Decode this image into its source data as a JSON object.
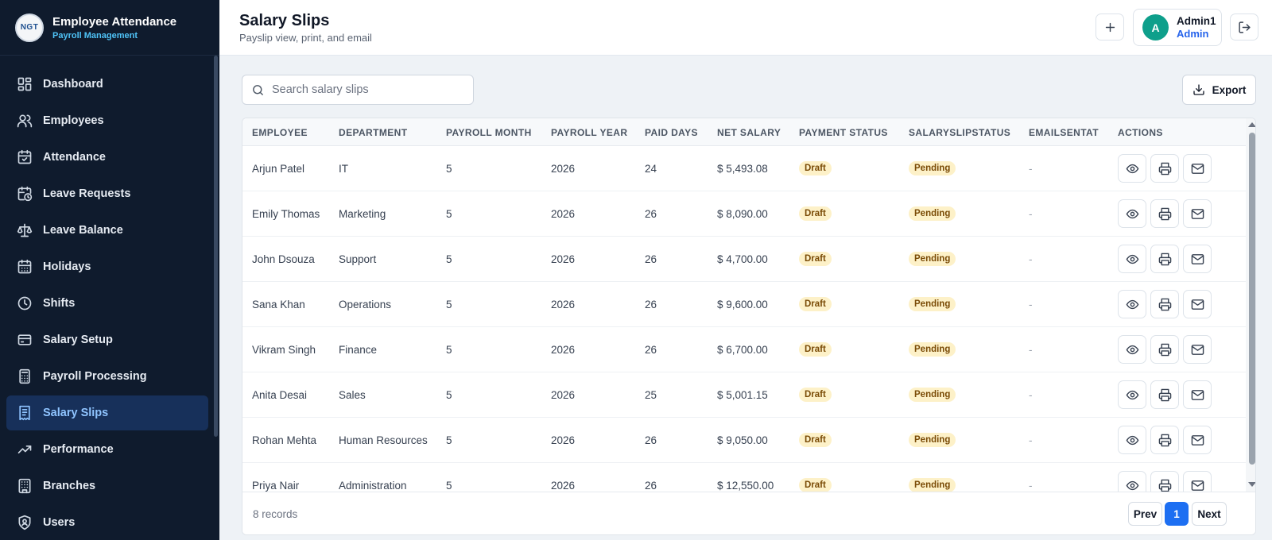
{
  "brand": {
    "logo_text": "NGT",
    "title": "Employee Attendance",
    "subtitle": "Payroll Management"
  },
  "sidebar": {
    "items": [
      {
        "label": "Dashboard",
        "icon": "dashboard-icon"
      },
      {
        "label": "Employees",
        "icon": "users-icon"
      },
      {
        "label": "Attendance",
        "icon": "calendar-check-icon"
      },
      {
        "label": "Leave Requests",
        "icon": "calendar-clock-icon"
      },
      {
        "label": "Leave Balance",
        "icon": "scale-icon"
      },
      {
        "label": "Holidays",
        "icon": "calendar-grid-icon"
      },
      {
        "label": "Shifts",
        "icon": "clock-icon"
      },
      {
        "label": "Salary Setup",
        "icon": "wallet-icon"
      },
      {
        "label": "Payroll Processing",
        "icon": "calculator-icon"
      },
      {
        "label": "Salary Slips",
        "icon": "receipt-icon",
        "active": true
      },
      {
        "label": "Performance",
        "icon": "trending-up-icon"
      },
      {
        "label": "Branches",
        "icon": "building-icon"
      },
      {
        "label": "Users",
        "icon": "shield-user-icon"
      }
    ]
  },
  "header": {
    "title": "Salary Slips",
    "subtitle": "Payslip view, print, and email",
    "user": {
      "initial": "A",
      "name": "Admin1",
      "role": "Admin"
    }
  },
  "search": {
    "placeholder": "Search salary slips",
    "value": ""
  },
  "toolbar": {
    "export_label": "Export"
  },
  "table": {
    "columns": [
      "EMPLOYEE",
      "DEPARTMENT",
      "PAYROLL MONTH",
      "PAYROLL YEAR",
      "PAID DAYS",
      "NET SALARY",
      "PAYMENT STATUS",
      "SALARYSLIPSTATUS",
      "EMAILSENTAT",
      "ACTIONS"
    ],
    "rows": [
      {
        "employee": "Arjun Patel",
        "department": "IT",
        "month": "5",
        "year": "2026",
        "paid_days": "24",
        "net_salary": "$ 5,493.08",
        "payment_status": "Draft",
        "slip_status": "Pending",
        "email_sent_at": "-"
      },
      {
        "employee": "Emily Thomas",
        "department": "Marketing",
        "month": "5",
        "year": "2026",
        "paid_days": "26",
        "net_salary": "$ 8,090.00",
        "payment_status": "Draft",
        "slip_status": "Pending",
        "email_sent_at": "-"
      },
      {
        "employee": "John Dsouza",
        "department": "Support",
        "month": "5",
        "year": "2026",
        "paid_days": "26",
        "net_salary": "$ 4,700.00",
        "payment_status": "Draft",
        "slip_status": "Pending",
        "email_sent_at": "-"
      },
      {
        "employee": "Sana Khan",
        "department": "Operations",
        "month": "5",
        "year": "2026",
        "paid_days": "26",
        "net_salary": "$ 9,600.00",
        "payment_status": "Draft",
        "slip_status": "Pending",
        "email_sent_at": "-"
      },
      {
        "employee": "Vikram Singh",
        "department": "Finance",
        "month": "5",
        "year": "2026",
        "paid_days": "26",
        "net_salary": "$ 6,700.00",
        "payment_status": "Draft",
        "slip_status": "Pending",
        "email_sent_at": "-"
      },
      {
        "employee": "Anita Desai",
        "department": "Sales",
        "month": "5",
        "year": "2026",
        "paid_days": "25",
        "net_salary": "$ 5,001.15",
        "payment_status": "Draft",
        "slip_status": "Pending",
        "email_sent_at": "-"
      },
      {
        "employee": "Rohan Mehta",
        "department": "Human Resources",
        "month": "5",
        "year": "2026",
        "paid_days": "26",
        "net_salary": "$ 9,050.00",
        "payment_status": "Draft",
        "slip_status": "Pending",
        "email_sent_at": "-"
      },
      {
        "employee": "Priya Nair",
        "department": "Administration",
        "month": "5",
        "year": "2026",
        "paid_days": "26",
        "net_salary": "$ 12,550.00",
        "payment_status": "Draft",
        "slip_status": "Pending",
        "email_sent_at": "-"
      }
    ],
    "row_actions": [
      "eye-icon",
      "printer-icon",
      "mail-icon"
    ]
  },
  "footer": {
    "records": "8 records",
    "prev_label": "Prev",
    "page": "1",
    "next_label": "Next"
  },
  "colors": {
    "sidebar_bg": "#0f1b2d",
    "accent": "#1d6ff2",
    "active_nav": "#17305a",
    "badge_bg": "#fdf1c8",
    "avatar": "#0e9f8b"
  }
}
